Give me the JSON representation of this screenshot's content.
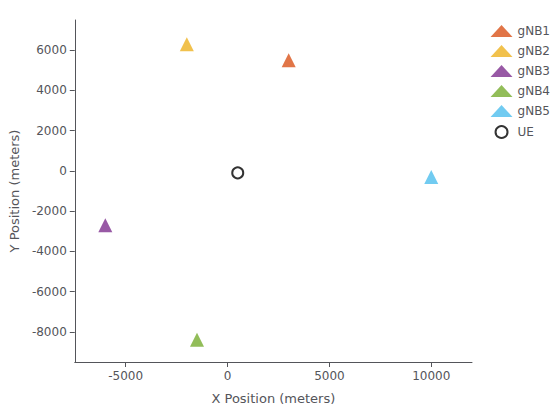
{
  "chart_data": {
    "type": "scatter",
    "xlabel": "X Position (meters)",
    "ylabel": "Y Position (meters)",
    "series": [
      {
        "name": "gNB1",
        "color": "#D95319",
        "marker": "triangle",
        "x": [
          3000
        ],
        "values": [
          5500
        ]
      },
      {
        "name": "gNB2",
        "color": "#EDB120",
        "marker": "triangle",
        "x": [
          -2000
        ],
        "values": [
          6300
        ]
      },
      {
        "name": "gNB3",
        "color": "#7E2F8E",
        "marker": "triangle",
        "x": [
          -6000
        ],
        "values": [
          -2700
        ]
      },
      {
        "name": "gNB4",
        "color": "#77AC30",
        "marker": "triangle",
        "x": [
          -1500
        ],
        "values": [
          -8400
        ]
      },
      {
        "name": "gNB5",
        "color": "#4DBEEE",
        "marker": "triangle",
        "x": [
          10000
        ],
        "values": [
          -300
        ]
      },
      {
        "name": "UE",
        "color": "#000000",
        "marker": "open_circle",
        "x": [
          500
        ],
        "values": [
          -100
        ]
      }
    ],
    "xlim": [
      -7500,
      12000
    ],
    "ylim": [
      -9500,
      7500
    ],
    "xticks": [
      -5000,
      0,
      5000,
      10000
    ],
    "yticks": [
      -8000,
      -6000,
      -4000,
      -2000,
      0,
      2000,
      4000,
      6000
    ],
    "grid": false,
    "legend": "upper right"
  }
}
